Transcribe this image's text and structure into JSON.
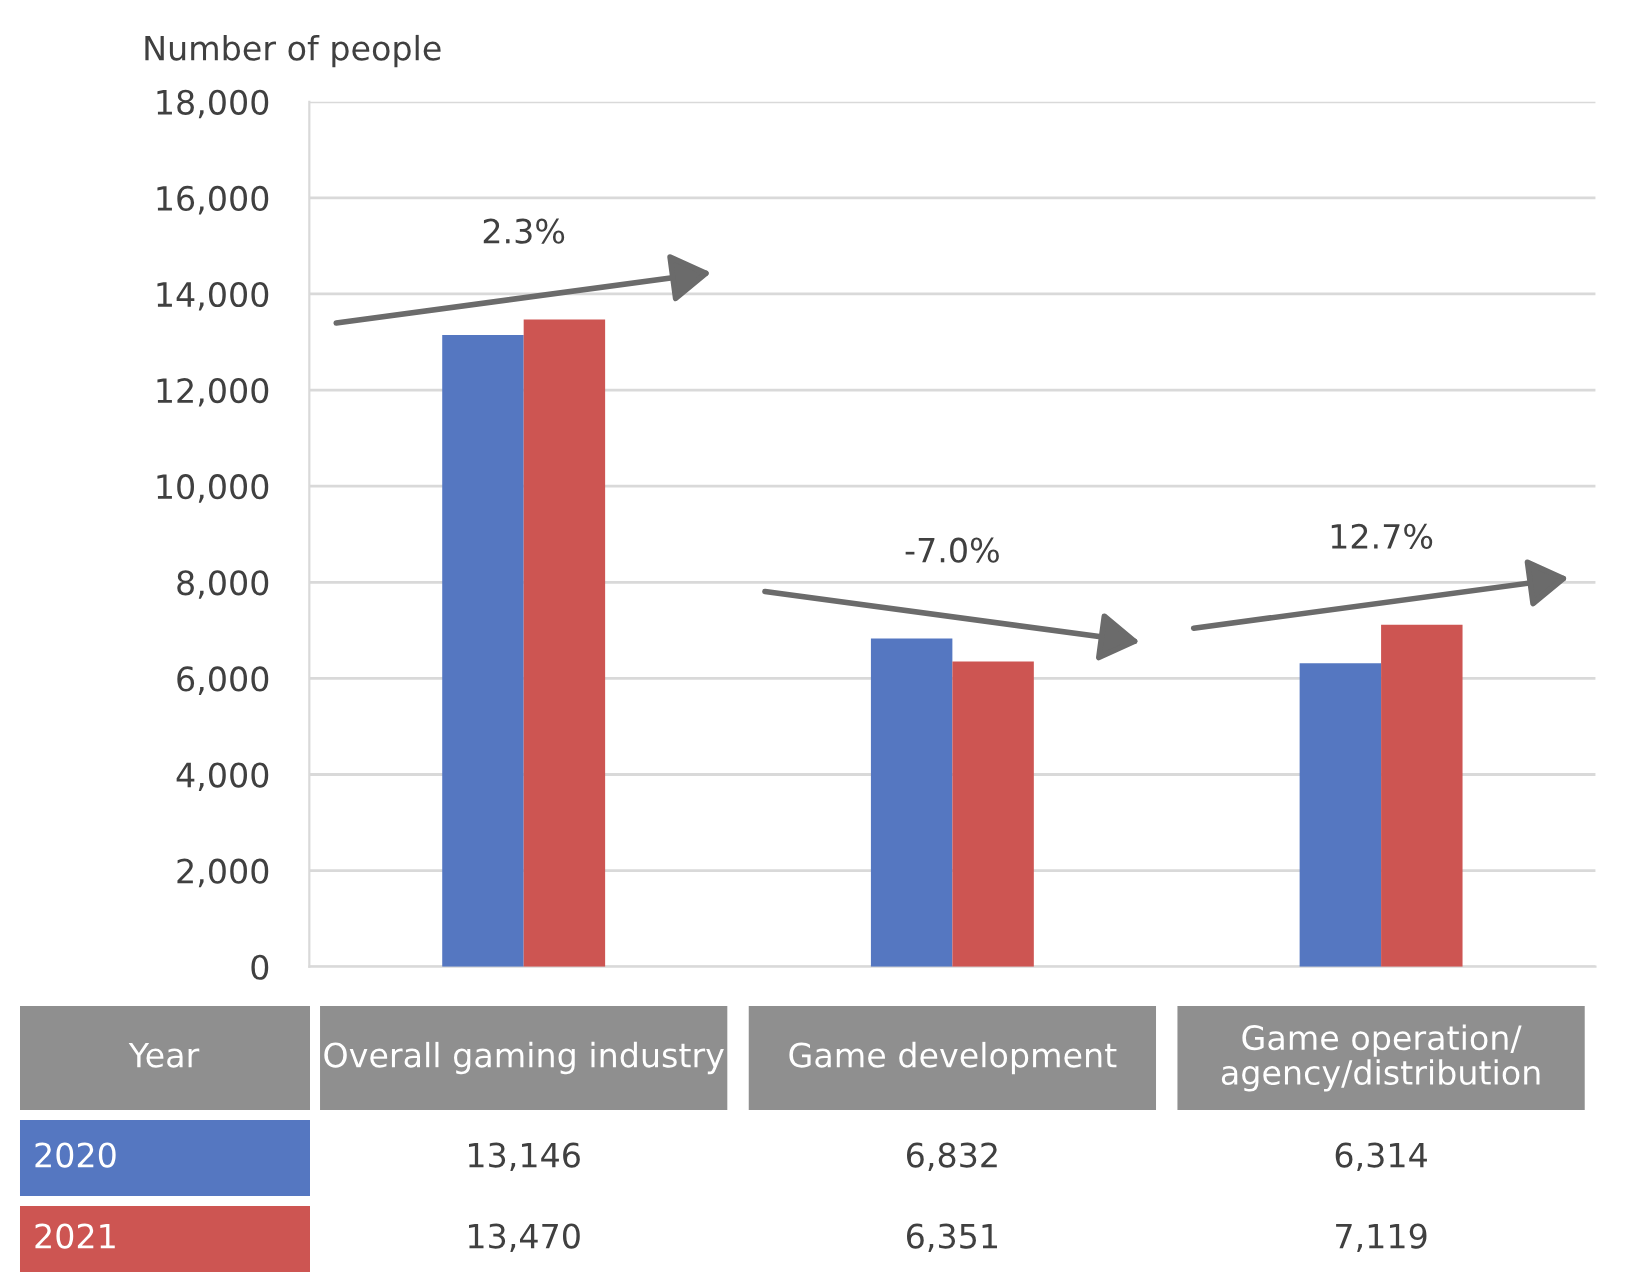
{
  "chart_data": {
    "type": "bar",
    "ylabel": "Number of people",
    "legend_title": "Year",
    "legend": "bottom",
    "categories": [
      "Overall gaming industry",
      "Game development",
      "Game operation/\nagency/distribution"
    ],
    "series": [
      {
        "name": "2020",
        "color": "#5577c1",
        "values": [
          13146,
          6832,
          6314
        ],
        "value_labels": [
          "13,146",
          "6,832",
          "6,314"
        ]
      },
      {
        "name": "2021",
        "color": "#cd5552",
        "values": [
          13470,
          6351,
          7119
        ],
        "value_labels": [
          "13,470",
          "6,351",
          "7,119"
        ]
      }
    ],
    "ylim": [
      0,
      18000
    ],
    "yticks": [
      {
        "value": 0,
        "label": "0"
      },
      {
        "value": 2000,
        "label": "2,000"
      },
      {
        "value": 4000,
        "label": "4,000"
      },
      {
        "value": 6000,
        "label": "6,000"
      },
      {
        "value": 8000,
        "label": "8,000"
      },
      {
        "value": 10000,
        "label": "10,000"
      },
      {
        "value": 12000,
        "label": "12,000"
      },
      {
        "value": 14000,
        "label": "14,000"
      },
      {
        "value": 16000,
        "label": "16,000"
      },
      {
        "value": 18000,
        "label": "18,000"
      }
    ],
    "grid": "y",
    "annotations": [
      "2.3%",
      "-7.0%",
      "12.7%"
    ]
  }
}
